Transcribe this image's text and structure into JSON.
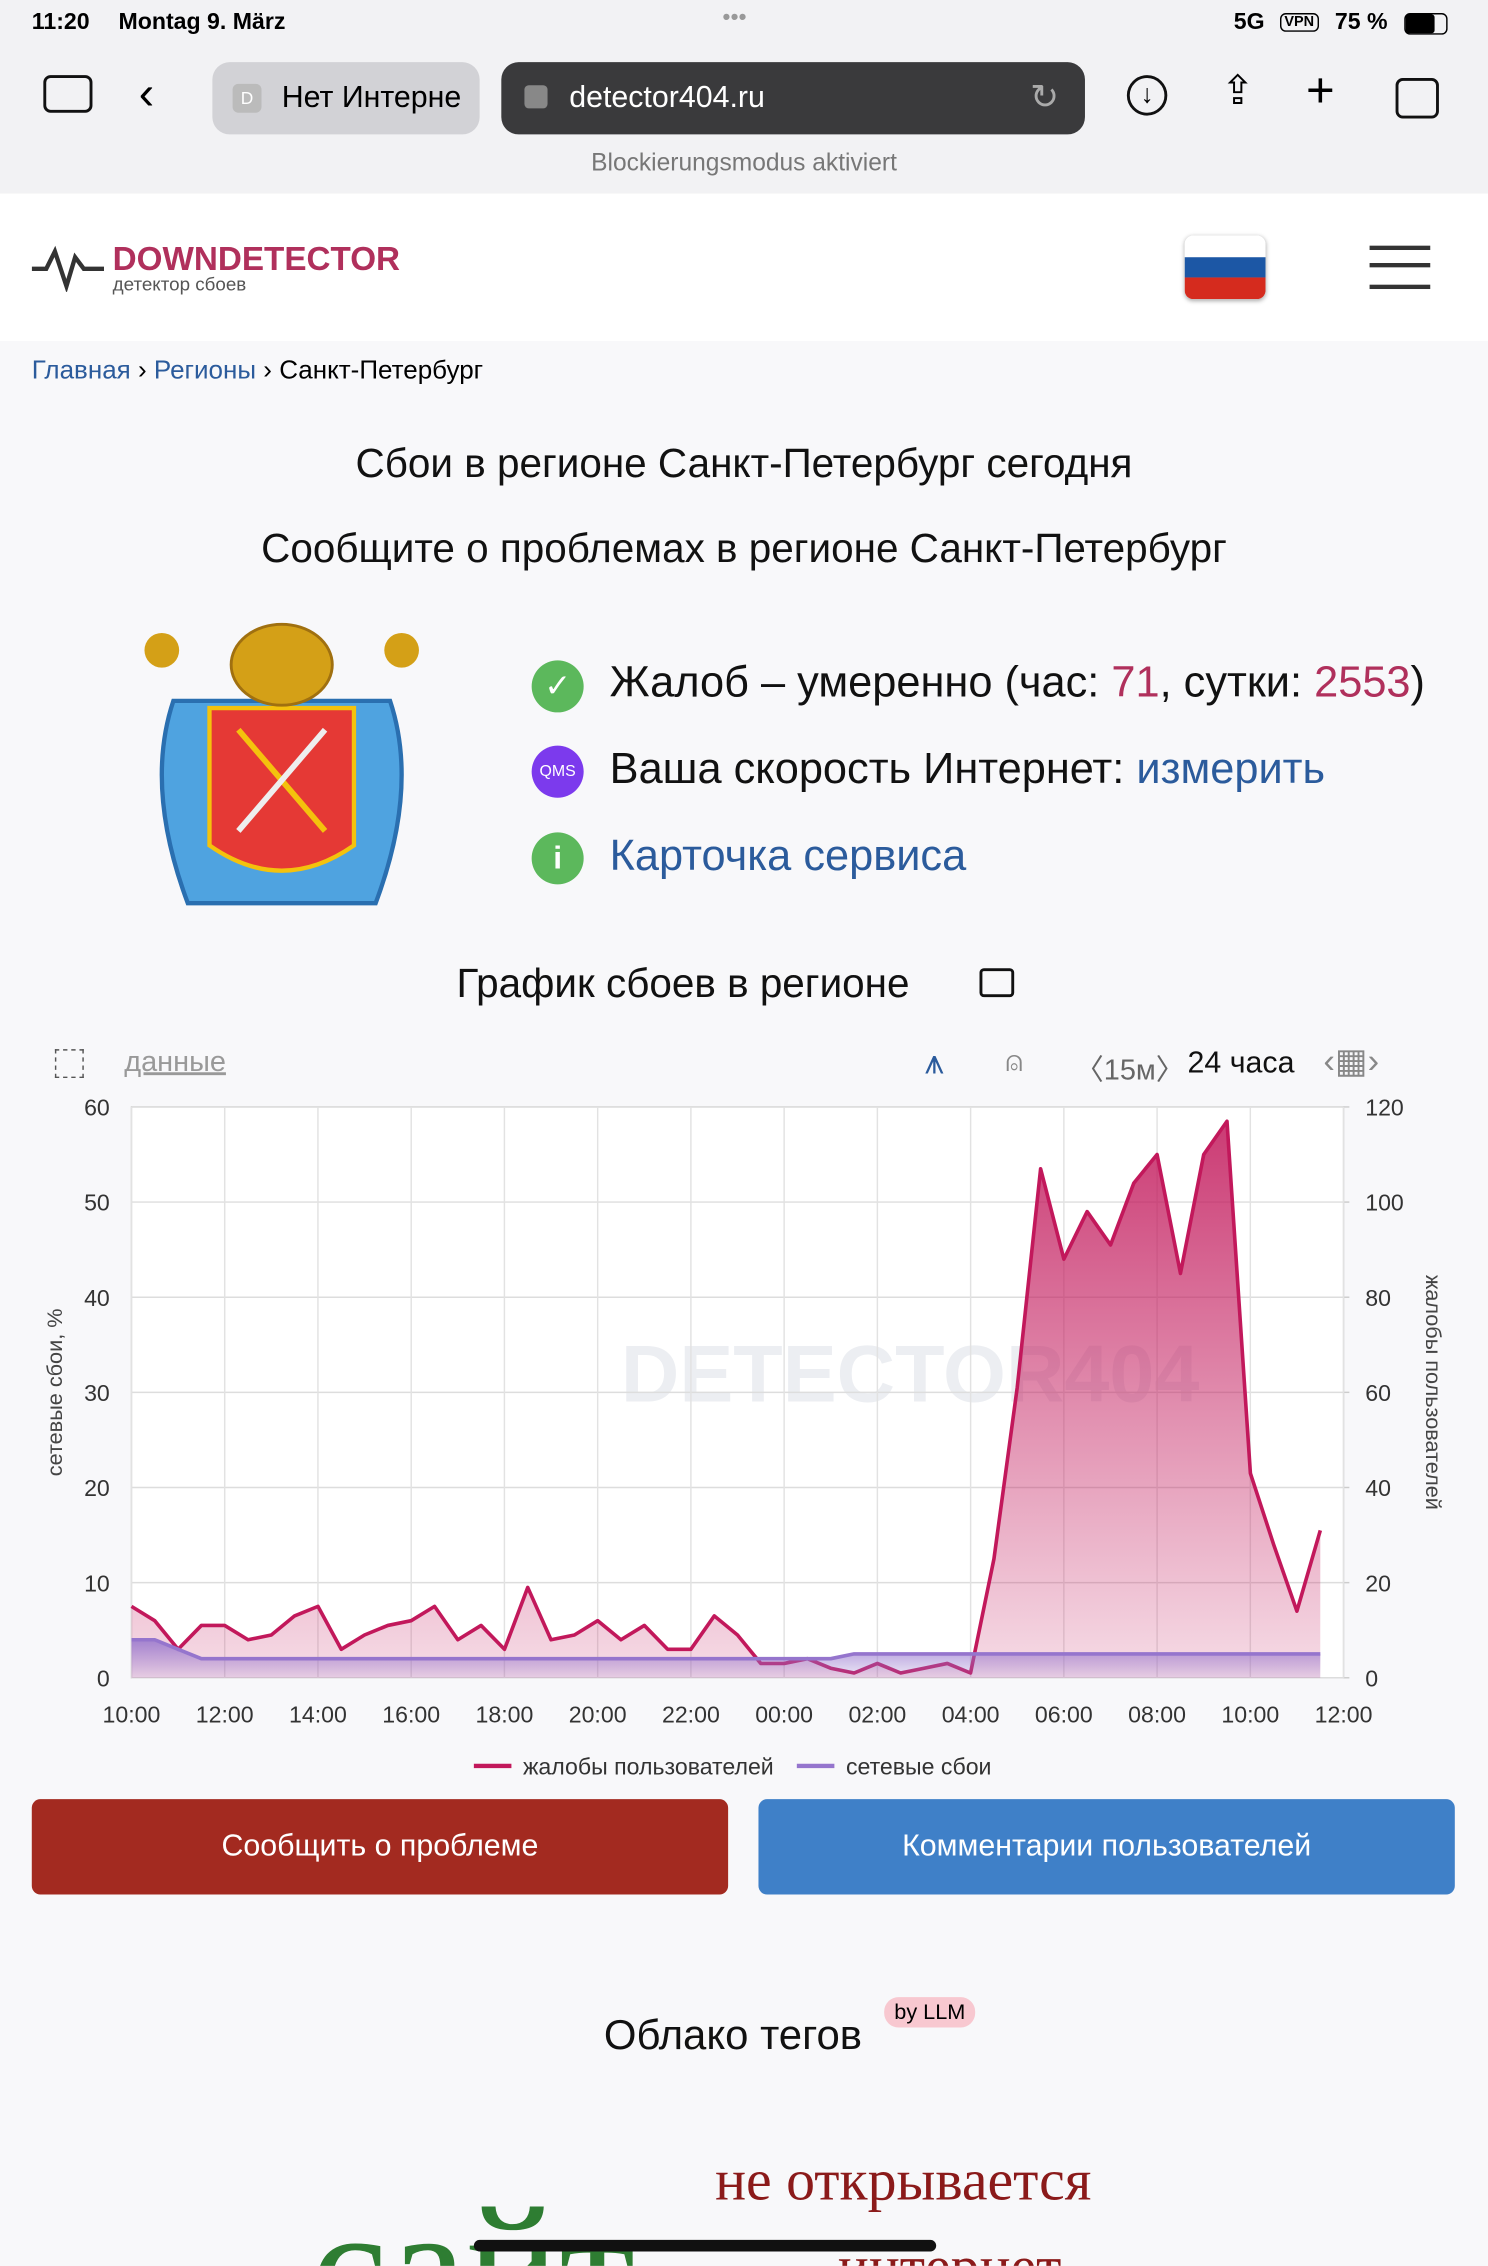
{
  "status_bar": {
    "time": "11:20",
    "date": "Montag 9. März",
    "network": "5G",
    "vpn": "VPN",
    "battery": "75 %"
  },
  "browser": {
    "tab_icon": "D",
    "tab": "Нет Интерне",
    "url": "detector404.ru",
    "notice": "Blockierungsmodus aktiviert"
  },
  "site": {
    "logo": "DOWNDETECTOR",
    "logo_subtitle": "детектор сбоев"
  },
  "breadcrumbs": [
    "Главная",
    "Регионы",
    "Санкт-Петербург"
  ],
  "heading": "Сбои в регионе Санкт-Петербург сегодня",
  "subheading": "Сообщите о проблемах в регионе Санкт-Петербург",
  "info": {
    "complaints_label": "Жалоб – умеренно (час: ",
    "hour": 71,
    "day_label": ", сутки: ",
    "day": 2553,
    "complaints_end": ")",
    "qms": "QMS",
    "speed_label": "Ваша скорость Интернет: ",
    "speed_link": "измерить",
    "card_link": "Карточка сервиса"
  },
  "chart": {
    "type": "line",
    "title": "График сбоев в регионе",
    "data_link": "данные",
    "interval": "〈15м〉",
    "period": "24 часа",
    "y_label": "сетевые сбои, %",
    "y2_label": "жалобы пользователей",
    "watermark": "DETECTOR404",
    "x": [
      10,
      10.5,
      11,
      11.5,
      12,
      12.5,
      13,
      13.5,
      14,
      14.5,
      15,
      15.5,
      16,
      16.5,
      17,
      17.5,
      18,
      18.5,
      19,
      19.5,
      20,
      20.5,
      21,
      21.5,
      22,
      22.5,
      23,
      23.5,
      24,
      24.5,
      25,
      25.5,
      26,
      26.5,
      27,
      27.5,
      28,
      28.5,
      29,
      29.5,
      30,
      30.5,
      31,
      31.5,
      32,
      32.5,
      33,
      33.5,
      34,
      34.5,
      35,
      35.5
    ],
    "xlim": [
      10,
      36
    ],
    "xticks": [
      {
        "value": 10,
        "label": "10:00"
      },
      {
        "value": 12,
        "label": "12:00"
      },
      {
        "value": 14,
        "label": "14:00"
      },
      {
        "value": 16,
        "label": "16:00"
      },
      {
        "value": 18,
        "label": "18:00"
      },
      {
        "value": 20,
        "label": "20:00"
      },
      {
        "value": 22,
        "label": "22:00"
      },
      {
        "value": 24,
        "label": "00:00"
      },
      {
        "value": 26,
        "label": "02:00"
      },
      {
        "value": 28,
        "label": "04:00"
      },
      {
        "value": 30,
        "label": "06:00"
      },
      {
        "value": 32,
        "label": "08:00"
      },
      {
        "value": 34,
        "label": "10:00"
      },
      {
        "value": 36,
        "label": "12:00"
      }
    ],
    "ylim": [
      0,
      60
    ],
    "yticks": [
      0,
      10,
      20,
      30,
      40,
      50,
      60
    ],
    "y2lim": [
      0,
      120
    ],
    "y2ticks": [
      0,
      20,
      40,
      60,
      80,
      100,
      120
    ],
    "grid": true,
    "series": [
      {
        "name": "жалобы пользователей",
        "color": "#c2185b",
        "axis": "y2",
        "values": [
          15,
          12,
          6,
          11,
          11,
          8,
          9,
          13,
          15,
          6,
          9,
          11,
          12,
          15,
          8,
          11,
          6,
          19,
          8,
          9,
          12,
          8,
          11,
          6,
          6,
          13,
          9,
          3,
          3,
          4,
          2,
          1,
          3,
          1,
          2,
          3,
          1,
          25,
          61,
          107,
          88,
          98,
          91,
          104,
          110,
          85,
          110,
          117,
          43,
          28,
          14,
          31
        ]
      },
      {
        "name": "сетевые сбои",
        "color": "#9575cd",
        "values": [
          4,
          4,
          3,
          2,
          2,
          2,
          2,
          2,
          2,
          2,
          2,
          2,
          2,
          2,
          2,
          2,
          2,
          2,
          2,
          2,
          2,
          2,
          2,
          2,
          2,
          2,
          2,
          2,
          2,
          2,
          2,
          2.5,
          2.5,
          2.5,
          2.5,
          2.5,
          2.5,
          2.5,
          2.5,
          2.5,
          2.5,
          2.5,
          2.5,
          2.5,
          2.5,
          2.5,
          2.5,
          2.5,
          2.5,
          2.5,
          2.5,
          2.5
        ]
      }
    ]
  },
  "buttons": [
    "Сообщить о проблеме",
    "Комментарии пользователей"
  ],
  "tags": {
    "title": "Облако тегов",
    "badge": "by LLM",
    "words": [
      "не открывается",
      "сайт",
      "интернет"
    ]
  }
}
